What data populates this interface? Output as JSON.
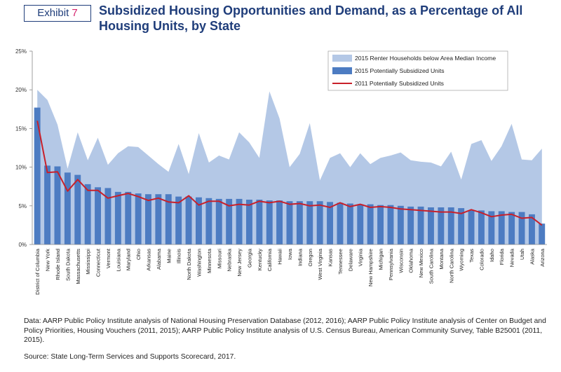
{
  "header": {
    "exhibit_label": "Exhibit",
    "exhibit_number": "7",
    "title": "Subsidized Housing Opportunities and Demand, as a Percentage of All Housing Units, by State"
  },
  "footer": {
    "data_note": "Data: AARP Public Policy Institute analysis of National Housing Preservation Database (2012, 2016); AARP Public Policy Institute analysis of Center on Budget and Policy Priorities, Housing Vouchers (2011, 2015); AARP Public Policy Institute analysis of U.S. Census Bureau, American Community Survey, Table B25001 (2011, 2015).",
    "source": "Source: State Long-Term Services and Supports Scorecard, 2017."
  },
  "colors": {
    "area": "#b4c8e6",
    "bar": "#4d7cc2",
    "line": "#c8202a",
    "title": "#1f3d7a",
    "exhibit_number": "#d6246e"
  },
  "chart_data": {
    "type": "bar",
    "title": "Subsidized Housing Opportunities and Demand, as a Percentage of All Housing Units, by State",
    "xlabel": "",
    "ylabel": "",
    "ylim": [
      0,
      25
    ],
    "yticks": [
      "0%",
      "5%",
      "10%",
      "15%",
      "20%",
      "25%"
    ],
    "grid": false,
    "legend_position": "top-right",
    "categories": [
      "District of Columbia",
      "New York",
      "Rhode Island",
      "South Dakota",
      "Massachusetts",
      "Mississippi",
      "Connecticut",
      "Vermont",
      "Louisiana",
      "Maryland",
      "Ohio",
      "Arkansas",
      "Alabama",
      "Maine",
      "Illinois",
      "North Dakota",
      "Washington",
      "Minnesota",
      "Missouri",
      "Nebraska",
      "New Jersey",
      "Georgia",
      "Kentucky",
      "California",
      "Hawaii",
      "Iowa",
      "Indiana",
      "Oregon",
      "West Virginia",
      "Kansas",
      "Tennessee",
      "Delaware",
      "Virginia",
      "New Hampshire",
      "Michigan",
      "Pennsylvania",
      "Wisconsin",
      "Oklahoma",
      "New Mexico",
      "South Carolina",
      "Montana",
      "North Carolina",
      "Wyoming",
      "Texas",
      "Colorado",
      "Idaho",
      "Florida",
      "Nevada",
      "Utah",
      "Alaska",
      "Arizona"
    ],
    "series": [
      {
        "name": "2015 Renter Households below Area Median Income",
        "kind": "area",
        "values": [
          20.0,
          18.7,
          15.5,
          9.8,
          14.5,
          10.9,
          13.8,
          10.3,
          11.8,
          12.7,
          12.6,
          11.5,
          10.4,
          9.4,
          13.0,
          9.1,
          14.4,
          10.6,
          11.5,
          11.0,
          14.5,
          13.2,
          11.2,
          19.8,
          16.3,
          10.0,
          11.7,
          15.7,
          8.3,
          11.2,
          11.8,
          10.0,
          11.8,
          10.4,
          11.2,
          11.5,
          11.9,
          10.9,
          10.7,
          10.6,
          10.1,
          12.0,
          8.4,
          13.0,
          13.5,
          10.8,
          12.7,
          15.6,
          11.0,
          10.9,
          12.4
        ]
      },
      {
        "name": "2015 Potentially Subsidized Units",
        "kind": "bar",
        "values": [
          17.7,
          10.2,
          10.1,
          9.3,
          9.0,
          7.8,
          7.4,
          7.3,
          6.8,
          6.8,
          6.6,
          6.5,
          6.5,
          6.5,
          6.2,
          6.2,
          6.1,
          6.0,
          5.9,
          5.9,
          5.9,
          5.8,
          5.8,
          5.7,
          5.7,
          5.6,
          5.6,
          5.6,
          5.6,
          5.5,
          5.4,
          5.3,
          5.2,
          5.2,
          5.1,
          5.1,
          5.0,
          4.9,
          4.9,
          4.8,
          4.8,
          4.8,
          4.7,
          4.4,
          4.4,
          4.3,
          4.3,
          4.2,
          4.2,
          3.9,
          2.7
        ]
      },
      {
        "name": "2011 Potentially Subsidized Units",
        "kind": "line",
        "values": [
          16.0,
          9.3,
          9.4,
          6.9,
          8.4,
          7.0,
          7.0,
          6.0,
          6.3,
          6.6,
          6.2,
          5.7,
          6.0,
          5.5,
          5.4,
          6.3,
          5.1,
          5.6,
          5.6,
          5.0,
          5.2,
          5.1,
          5.6,
          5.4,
          5.6,
          5.2,
          5.3,
          5.0,
          5.1,
          4.8,
          5.4,
          4.9,
          5.2,
          4.8,
          4.9,
          4.8,
          4.6,
          4.5,
          4.4,
          4.3,
          4.2,
          4.2,
          4.0,
          4.5,
          4.1,
          3.6,
          3.8,
          3.9,
          3.4,
          3.5,
          2.5
        ]
      }
    ]
  }
}
